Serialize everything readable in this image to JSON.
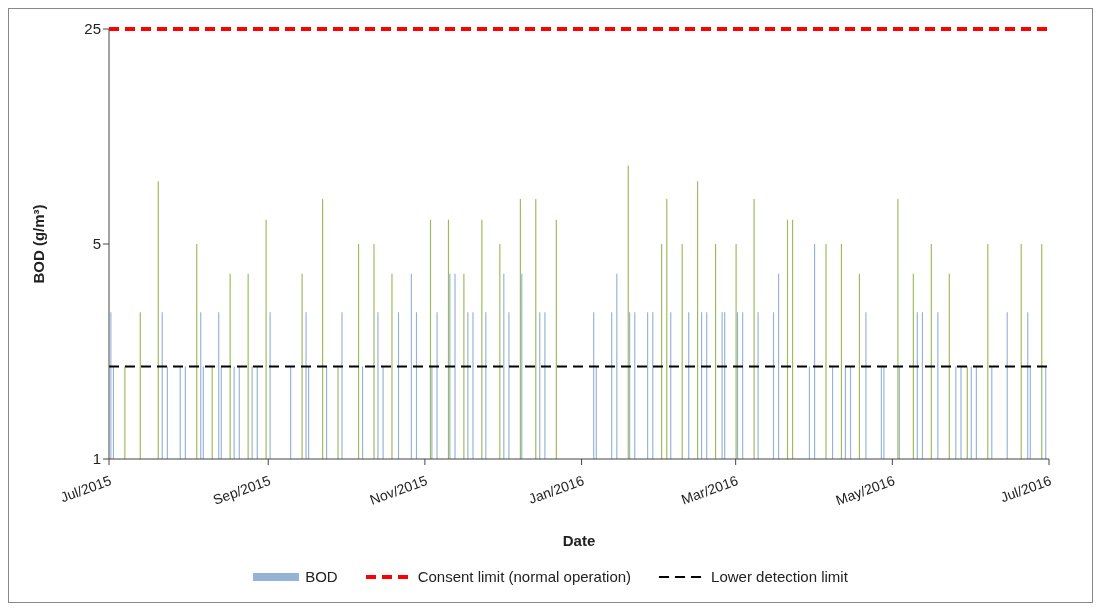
{
  "chart_data": {
    "type": "bar",
    "xlabel": "Date",
    "ylabel": "BOD (g/m³)",
    "log": "y",
    "legend": "bottom",
    "xlim": [
      "2015-07-01",
      "2016-07-01"
    ],
    "xticks": [
      {
        "value": "2015-07-01",
        "label": "Jul/2015"
      },
      {
        "value": "2015-09-01",
        "label": "Sep/2015"
      },
      {
        "value": "2015-11-01",
        "label": "Nov/2015"
      },
      {
        "value": "2016-01-01",
        "label": "Jan/2016"
      },
      {
        "value": "2016-03-01",
        "label": "Mar/2016"
      },
      {
        "value": "2016-05-01",
        "label": "May/2016"
      },
      {
        "value": "2016-07-01",
        "label": "Jul/2016"
      }
    ],
    "ylim": [
      1,
      25
    ],
    "yticks": [
      1,
      5,
      25
    ],
    "series": [
      {
        "name": "BOD",
        "color": "#95b3d7",
        "x": [
          "2015-07-02",
          "2015-07-03",
          "2015-07-22",
          "2015-07-24",
          "2015-07-29",
          "2015-07-31",
          "2015-08-06",
          "2015-08-07",
          "2015-08-13",
          "2015-08-14",
          "2015-08-19",
          "2015-08-21",
          "2015-08-26",
          "2015-08-28",
          "2015-09-02",
          "2015-09-10",
          "2015-09-16",
          "2015-09-17",
          "2015-09-24",
          "2015-09-30",
          "2015-10-08",
          "2015-10-14",
          "2015-10-16",
          "2015-10-22",
          "2015-10-27",
          "2015-10-29",
          "2015-11-04",
          "2015-11-06",
          "2015-11-11",
          "2015-11-13",
          "2015-11-18",
          "2015-11-20",
          "2015-11-25",
          "2015-12-02",
          "2015-12-04",
          "2015-12-09",
          "2015-12-16",
          "2015-12-18",
          "2016-01-06",
          "2016-01-07",
          "2016-01-13",
          "2016-01-15",
          "2016-01-20",
          "2016-01-22",
          "2016-01-27",
          "2016-01-29",
          "2016-02-05",
          "2016-02-12",
          "2016-02-17",
          "2016-02-19",
          "2016-02-25",
          "2016-02-26",
          "2016-03-02",
          "2016-03-04",
          "2016-03-10",
          "2016-03-16",
          "2016-03-18",
          "2016-03-30",
          "2016-04-01",
          "2016-04-08",
          "2016-04-13",
          "2016-04-15",
          "2016-04-21",
          "2016-04-27",
          "2016-04-28",
          "2016-05-04",
          "2016-05-11",
          "2016-05-13",
          "2016-05-19",
          "2016-05-26",
          "2016-05-28",
          "2016-06-01",
          "2016-06-03",
          "2016-06-09",
          "2016-06-15",
          "2016-06-23",
          "2016-06-24",
          "2016-06-30"
        ],
        "values": [
          3,
          2,
          3,
          2,
          2,
          2,
          3,
          2,
          3,
          2,
          2,
          2,
          2,
          2,
          3,
          2,
          3,
          2,
          2,
          3,
          2,
          3,
          2,
          3,
          4,
          3,
          2,
          3,
          4,
          4,
          3,
          3,
          3,
          4,
          3,
          4,
          3,
          3,
          3,
          2,
          3,
          4,
          3,
          3,
          3,
          3,
          3,
          3,
          3,
          3,
          3,
          3,
          3,
          3,
          3,
          3,
          4,
          2,
          5,
          2,
          2,
          2,
          3,
          2,
          2,
          2,
          3,
          3,
          3,
          2,
          2,
          2,
          2,
          2,
          3,
          3,
          2,
          2
        ]
      },
      {
        "color": "#9bbb59",
        "x": [
          "2015-07-07",
          "2015-07-13",
          "2015-07-20",
          "2015-08-04",
          "2015-08-10",
          "2015-08-17",
          "2015-08-24",
          "2015-08-31",
          "2015-09-14",
          "2015-09-22",
          "2015-09-28",
          "2015-10-06",
          "2015-10-12",
          "2015-10-19",
          "2015-11-03",
          "2015-11-10",
          "2015-11-16",
          "2015-11-23",
          "2015-11-30",
          "2015-12-08",
          "2015-12-14",
          "2015-12-22",
          "2016-01-19",
          "2016-02-01",
          "2016-02-03",
          "2016-02-09",
          "2016-02-15",
          "2016-02-22",
          "2016-03-01",
          "2016-03-08",
          "2016-03-21",
          "2016-03-23",
          "2016-04-05",
          "2016-04-11",
          "2016-04-18",
          "2016-05-03",
          "2016-05-09",
          "2016-05-16",
          "2016-05-23",
          "2016-05-30",
          "2016-06-07",
          "2016-06-20",
          "2016-06-28"
        ],
        "values": [
          2,
          3,
          8,
          5,
          2,
          4,
          4,
          6,
          4,
          7,
          2,
          5,
          5,
          4,
          6,
          6,
          4,
          6,
          5,
          7,
          7,
          6,
          9,
          5,
          7,
          5,
          8,
          5,
          5,
          7,
          6,
          6,
          5,
          5,
          4,
          7,
          4,
          5,
          4,
          2,
          5,
          5,
          5
        ]
      }
    ],
    "ref_lines": [
      {
        "axis": "y",
        "value": 25,
        "label": "Consent limit (normal operation)",
        "color": "#ff0000",
        "line_style": "dashed"
      },
      {
        "axis": "y",
        "value": 2,
        "label": "Lower detection limit",
        "color": "#000000",
        "line_style": "dashed"
      }
    ]
  }
}
